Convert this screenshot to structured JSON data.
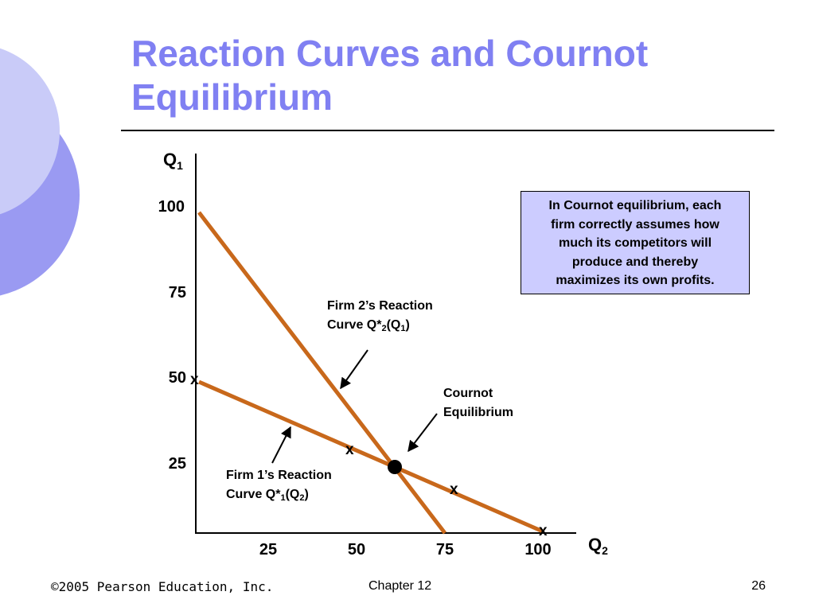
{
  "slide": {
    "title_lines": [
      "Reaction Curves and Cournot",
      "Equilibrium"
    ]
  },
  "colors": {
    "title": "#8080f2",
    "curve": "#c8681b",
    "callout_bg": "#ccccff",
    "deco_light": "#c9cbf8",
    "deco_dark": "#9a9af2"
  },
  "diagram": {
    "y_axis": {
      "label": "Q",
      "subscript": "1",
      "ticks": [
        "100",
        "75",
        "50",
        "25"
      ]
    },
    "x_axis": {
      "label": "Q",
      "subscript": "2",
      "ticks": [
        "25",
        "50",
        "75",
        "100"
      ]
    },
    "firm2_curve": {
      "line1": "Firm 2’s Reaction",
      "line2_prefix": "Curve Q*",
      "line2_sub1": "2",
      "line2_mid": "(Q",
      "line2_sub2": "1",
      "line2_suffix": ")"
    },
    "firm1_curve": {
      "line1": "Firm 1’s Reaction",
      "line2_prefix": "Curve Q*",
      "line2_sub1": "1",
      "line2_mid": "(Q",
      "line2_sub2": "2",
      "line2_suffix": ")"
    },
    "equilibrium_label": [
      "Cournot",
      "Equilibrium"
    ],
    "point_marker": "x",
    "callout_lines": [
      "In Cournot equilibrium, each",
      "firm correctly assumes how",
      "much its competitors will",
      "produce and thereby",
      "maximizes its own profits."
    ]
  },
  "footer": {
    "copyright": "©2005 Pearson Education, Inc.",
    "chapter": "Chapter 12",
    "page": "26"
  }
}
